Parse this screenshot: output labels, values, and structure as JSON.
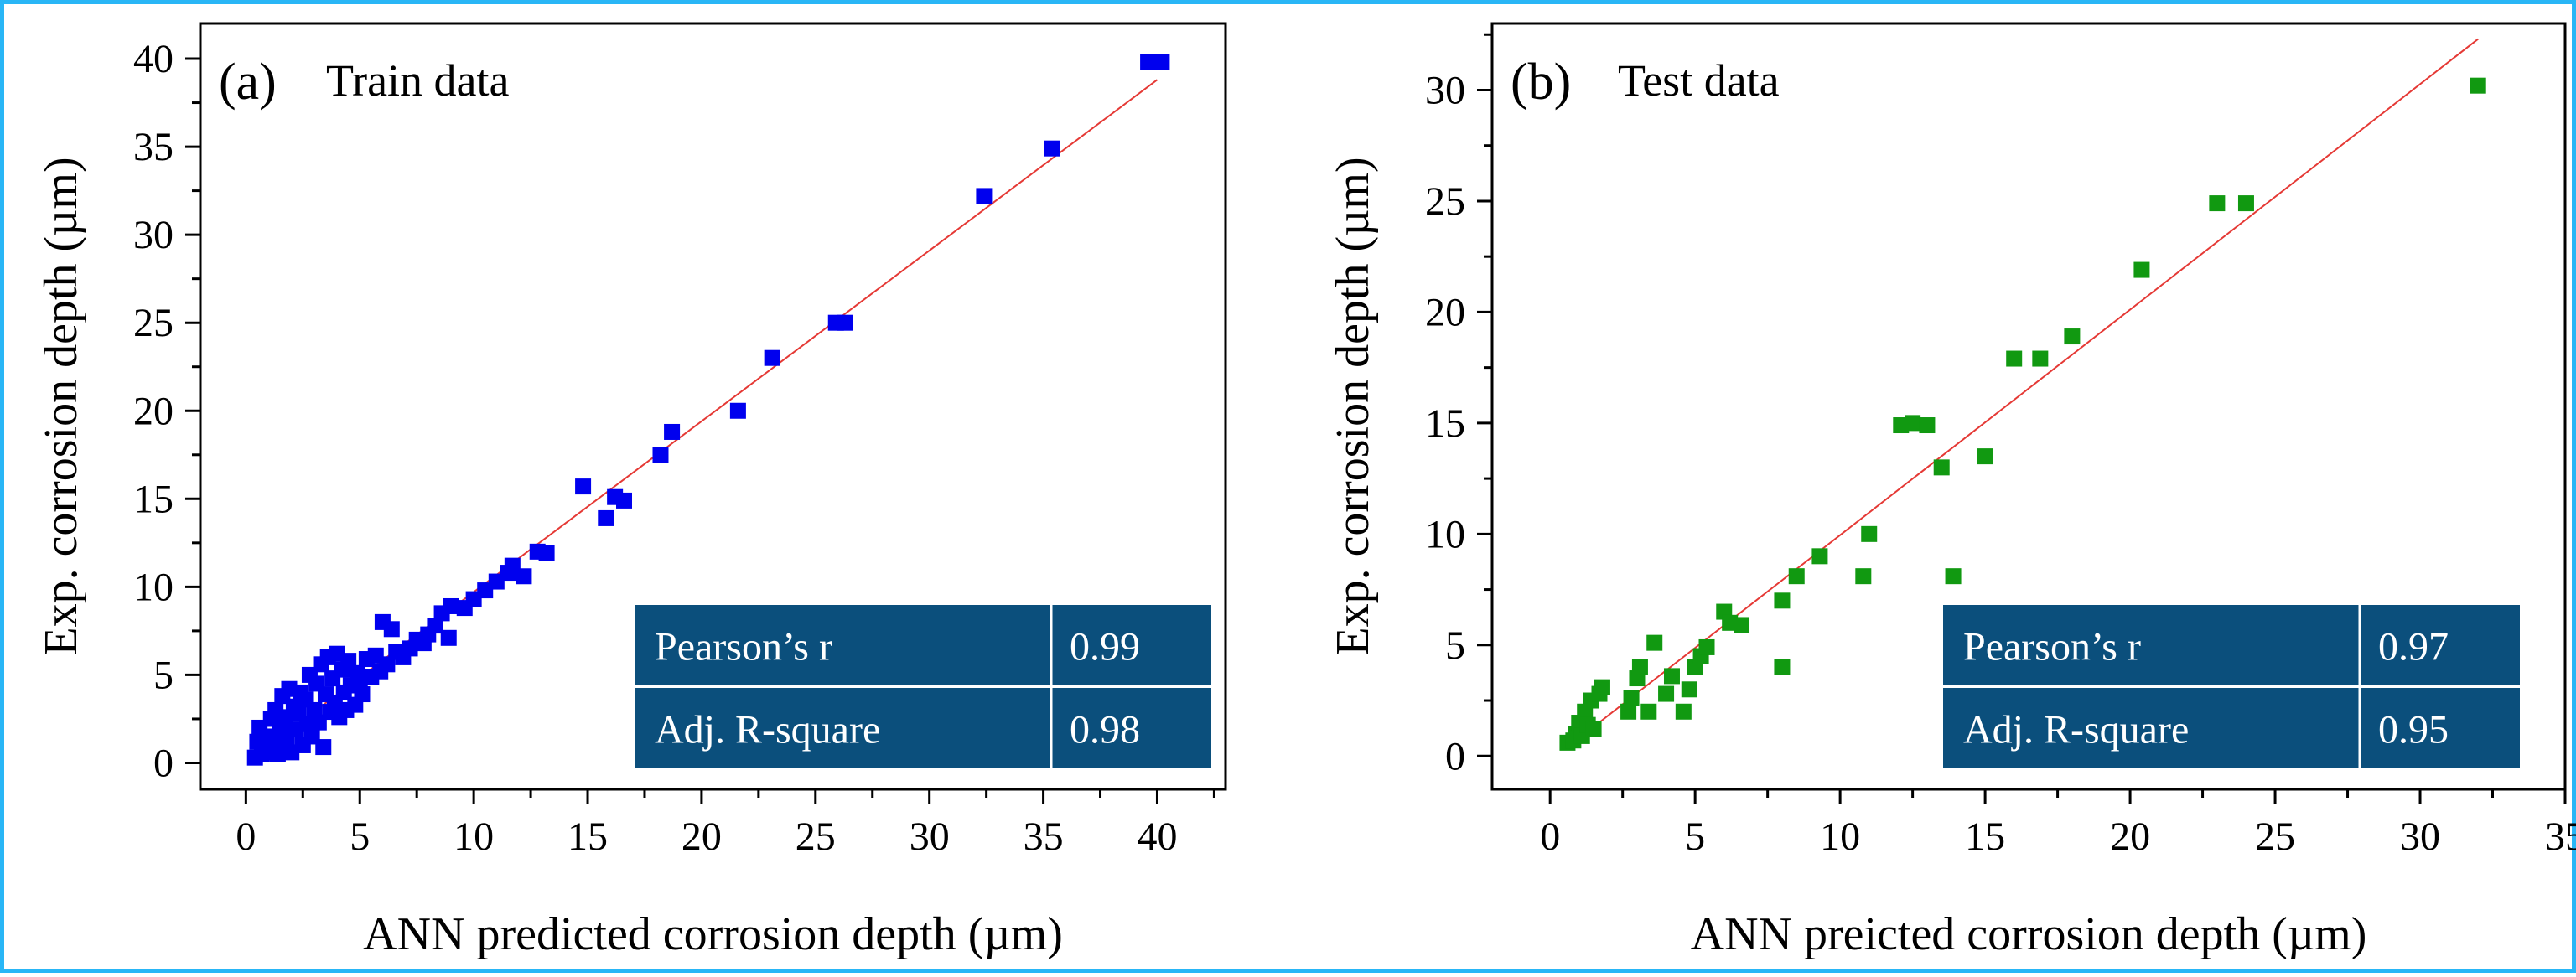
{
  "chart_data": [
    {
      "type": "scatter",
      "panel_label": "(a)",
      "title": "Train data",
      "xlabel": "ANN predicted corrosion depth (µm)",
      "ylabel": "Exp. corrosion depth (µm)",
      "xlim": [
        -2,
        43
      ],
      "ylim": [
        -1.5,
        42
      ],
      "xticks": [
        "0",
        "5",
        "10",
        "15",
        "20",
        "25",
        "30",
        "35",
        "40"
      ],
      "yticks": [
        "0",
        "5",
        "10",
        "15",
        "20",
        "25",
        "30",
        "35",
        "40"
      ],
      "marker_color": "#0000ee",
      "fit_line": {
        "color": "#e53935",
        "x": [
          0.3,
          40
        ],
        "y": [
          0.3,
          38.8
        ]
      },
      "stats": [
        {
          "label": "Pearson’s r",
          "value": "0.99"
        },
        {
          "label": "Adj. R-square",
          "value": "0.98"
        }
      ],
      "series": [
        {
          "points": [
            [
              0.4,
              0.3
            ],
            [
              0.5,
              1.2
            ],
            [
              0.7,
              0.5
            ],
            [
              0.6,
              2.0
            ],
            [
              0.9,
              1.5
            ],
            [
              1.0,
              0.6
            ],
            [
              1.1,
              2.5
            ],
            [
              1.2,
              1.0
            ],
            [
              1.3,
              3.0
            ],
            [
              1.4,
              0.5
            ],
            [
              1.5,
              1.8
            ],
            [
              1.6,
              3.8
            ],
            [
              1.7,
              2.6
            ],
            [
              1.8,
              1.2
            ],
            [
              1.9,
              4.2
            ],
            [
              2.0,
              0.6
            ],
            [
              2.1,
              3.2
            ],
            [
              2.2,
              1.9
            ],
            [
              2.3,
              2.8
            ],
            [
              2.4,
              4.0
            ],
            [
              2.5,
              1.0
            ],
            [
              2.6,
              3.6
            ],
            [
              2.7,
              2.2
            ],
            [
              2.8,
              5.0
            ],
            [
              2.9,
              1.5
            ],
            [
              3.0,
              3.0
            ],
            [
              3.1,
              4.5
            ],
            [
              3.2,
              2.3
            ],
            [
              3.3,
              5.6
            ],
            [
              3.4,
              0.9
            ],
            [
              3.5,
              3.9
            ],
            [
              3.6,
              6.0
            ],
            [
              3.7,
              2.9
            ],
            [
              3.8,
              4.8
            ],
            [
              3.9,
              3.4
            ],
            [
              4.0,
              6.2
            ],
            [
              4.1,
              2.6
            ],
            [
              4.2,
              5.3
            ],
            [
              4.3,
              4.0
            ],
            [
              4.4,
              3.0
            ],
            [
              4.5,
              5.8
            ],
            [
              4.6,
              4.4
            ],
            [
              4.8,
              3.3
            ],
            [
              4.9,
              5.1
            ],
            [
              5.0,
              4.6
            ],
            [
              5.1,
              3.9
            ],
            [
              5.3,
              5.9
            ],
            [
              5.5,
              4.9
            ],
            [
              5.7,
              6.1
            ],
            [
              5.9,
              5.2
            ],
            [
              6.0,
              8.0
            ],
            [
              6.2,
              5.6
            ],
            [
              6.4,
              7.6
            ],
            [
              6.6,
              6.3
            ],
            [
              6.9,
              6.0
            ],
            [
              7.2,
              6.5
            ],
            [
              7.5,
              7.0
            ],
            [
              7.8,
              6.8
            ],
            [
              8.0,
              7.3
            ],
            [
              8.3,
              7.8
            ],
            [
              8.6,
              8.5
            ],
            [
              8.9,
              7.1
            ],
            [
              9.0,
              8.9
            ],
            [
              9.6,
              8.8
            ],
            [
              10.0,
              9.3
            ],
            [
              10.5,
              9.8
            ],
            [
              11.0,
              10.3
            ],
            [
              11.5,
              10.8
            ],
            [
              11.7,
              11.2
            ],
            [
              12.2,
              10.6
            ],
            [
              12.8,
              12.0
            ],
            [
              13.2,
              11.9
            ],
            [
              14.8,
              15.7
            ],
            [
              15.8,
              13.9
            ],
            [
              16.2,
              15.1
            ],
            [
              16.6,
              14.9
            ],
            [
              18.2,
              17.5
            ],
            [
              18.7,
              18.8
            ],
            [
              21.6,
              20.0
            ],
            [
              23.1,
              23.0
            ],
            [
              25.9,
              25.0
            ],
            [
              26.3,
              25.0
            ],
            [
              32.4,
              32.2
            ],
            [
              35.4,
              34.9
            ],
            [
              39.6,
              39.8
            ],
            [
              40.2,
              39.8
            ]
          ]
        }
      ]
    },
    {
      "type": "scatter",
      "panel_label": "(b)",
      "title": "Test data",
      "xlabel": "ANN preicted corrosion depth (µm)",
      "ylabel": "Exp. corrosion depth (µm)",
      "xlim": [
        -2,
        35
      ],
      "ylim": [
        -1.5,
        33
      ],
      "xticks": [
        "0",
        "5",
        "10",
        "15",
        "20",
        "25",
        "30",
        "35"
      ],
      "yticks": [
        "0",
        "5",
        "10",
        "15",
        "20",
        "25",
        "30"
      ],
      "marker_color": "#119911",
      "fit_line": {
        "color": "#e53935",
        "x": [
          0.5,
          32
        ],
        "y": [
          0.3,
          32.3
        ]
      },
      "stats": [
        {
          "label": "Pearson’s r",
          "value": "0.97"
        },
        {
          "label": "Adj. R-square",
          "value": "0.95"
        }
      ],
      "series": [
        {
          "points": [
            [
              0.6,
              0.6
            ],
            [
              0.8,
              0.7
            ],
            [
              0.9,
              1.0
            ],
            [
              1.0,
              1.5
            ],
            [
              1.1,
              0.9
            ],
            [
              1.2,
              2.0
            ],
            [
              1.3,
              1.4
            ],
            [
              1.4,
              2.5
            ],
            [
              1.5,
              1.2
            ],
            [
              1.7,
              2.8
            ],
            [
              1.8,
              3.1
            ],
            [
              2.7,
              2.0
            ],
            [
              2.8,
              2.6
            ],
            [
              3.0,
              3.5
            ],
            [
              3.1,
              4.0
            ],
            [
              3.4,
              2.0
            ],
            [
              3.6,
              5.1
            ],
            [
              4.0,
              2.8
            ],
            [
              4.2,
              3.6
            ],
            [
              4.6,
              2.0
            ],
            [
              4.8,
              3.0
            ],
            [
              5.0,
              4.0
            ],
            [
              5.2,
              4.5
            ],
            [
              5.4,
              4.9
            ],
            [
              6.0,
              6.5
            ],
            [
              6.2,
              6.0
            ],
            [
              6.6,
              5.9
            ],
            [
              8.0,
              4.0
            ],
            [
              8.0,
              7.0
            ],
            [
              8.5,
              8.1
            ],
            [
              9.3,
              9.0
            ],
            [
              10.8,
              8.1
            ],
            [
              11.0,
              10.0
            ],
            [
              12.1,
              14.9
            ],
            [
              12.5,
              15.0
            ],
            [
              13.0,
              14.9
            ],
            [
              13.5,
              13.0
            ],
            [
              13.9,
              8.1
            ],
            [
              15.0,
              13.5
            ],
            [
              16.0,
              17.9
            ],
            [
              16.9,
              17.9
            ],
            [
              18.0,
              18.9
            ],
            [
              20.4,
              21.9
            ],
            [
              23.0,
              24.9
            ],
            [
              24.0,
              24.9
            ],
            [
              32.0,
              30.2
            ]
          ]
        }
      ]
    }
  ]
}
